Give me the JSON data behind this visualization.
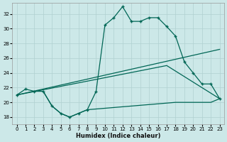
{
  "xlabel": "Humidex (Indice chaleur)",
  "background_color": "#cce8e8",
  "grid_color": "#b0d0d0",
  "line_color": "#006655",
  "xlim": [
    -0.5,
    23.5
  ],
  "ylim": [
    17.0,
    33.5
  ],
  "yticks": [
    18,
    20,
    22,
    24,
    26,
    28,
    30,
    32
  ],
  "xticks": [
    0,
    1,
    2,
    3,
    4,
    5,
    6,
    7,
    8,
    9,
    10,
    11,
    12,
    13,
    14,
    15,
    16,
    17,
    18,
    19,
    20,
    21,
    22,
    23
  ],
  "line1_x": [
    0,
    1,
    2,
    3,
    4,
    5,
    6,
    7,
    8,
    9,
    10,
    11,
    12,
    13,
    14,
    15,
    16,
    17,
    18,
    19,
    20,
    21,
    22,
    23
  ],
  "line1_y": [
    21.0,
    21.8,
    21.5,
    21.5,
    19.5,
    18.5,
    18.0,
    18.5,
    19.0,
    21.5,
    30.5,
    31.5,
    33.0,
    31.0,
    31.0,
    31.5,
    31.5,
    30.3,
    29.0,
    25.5,
    24.0,
    22.5,
    22.5,
    20.5
  ],
  "line2_x": [
    0,
    23
  ],
  "line2_y": [
    21.0,
    27.2
  ],
  "line3_x": [
    0,
    17,
    23
  ],
  "line3_y": [
    21.0,
    25.0,
    20.5
  ],
  "line4_x": [
    3,
    4,
    5,
    6,
    7,
    8,
    18,
    19,
    20,
    21,
    22,
    23
  ],
  "line4_y": [
    21.5,
    19.5,
    18.5,
    18.0,
    18.5,
    19.0,
    20.0,
    20.0,
    20.0,
    20.0,
    20.0,
    20.5
  ]
}
